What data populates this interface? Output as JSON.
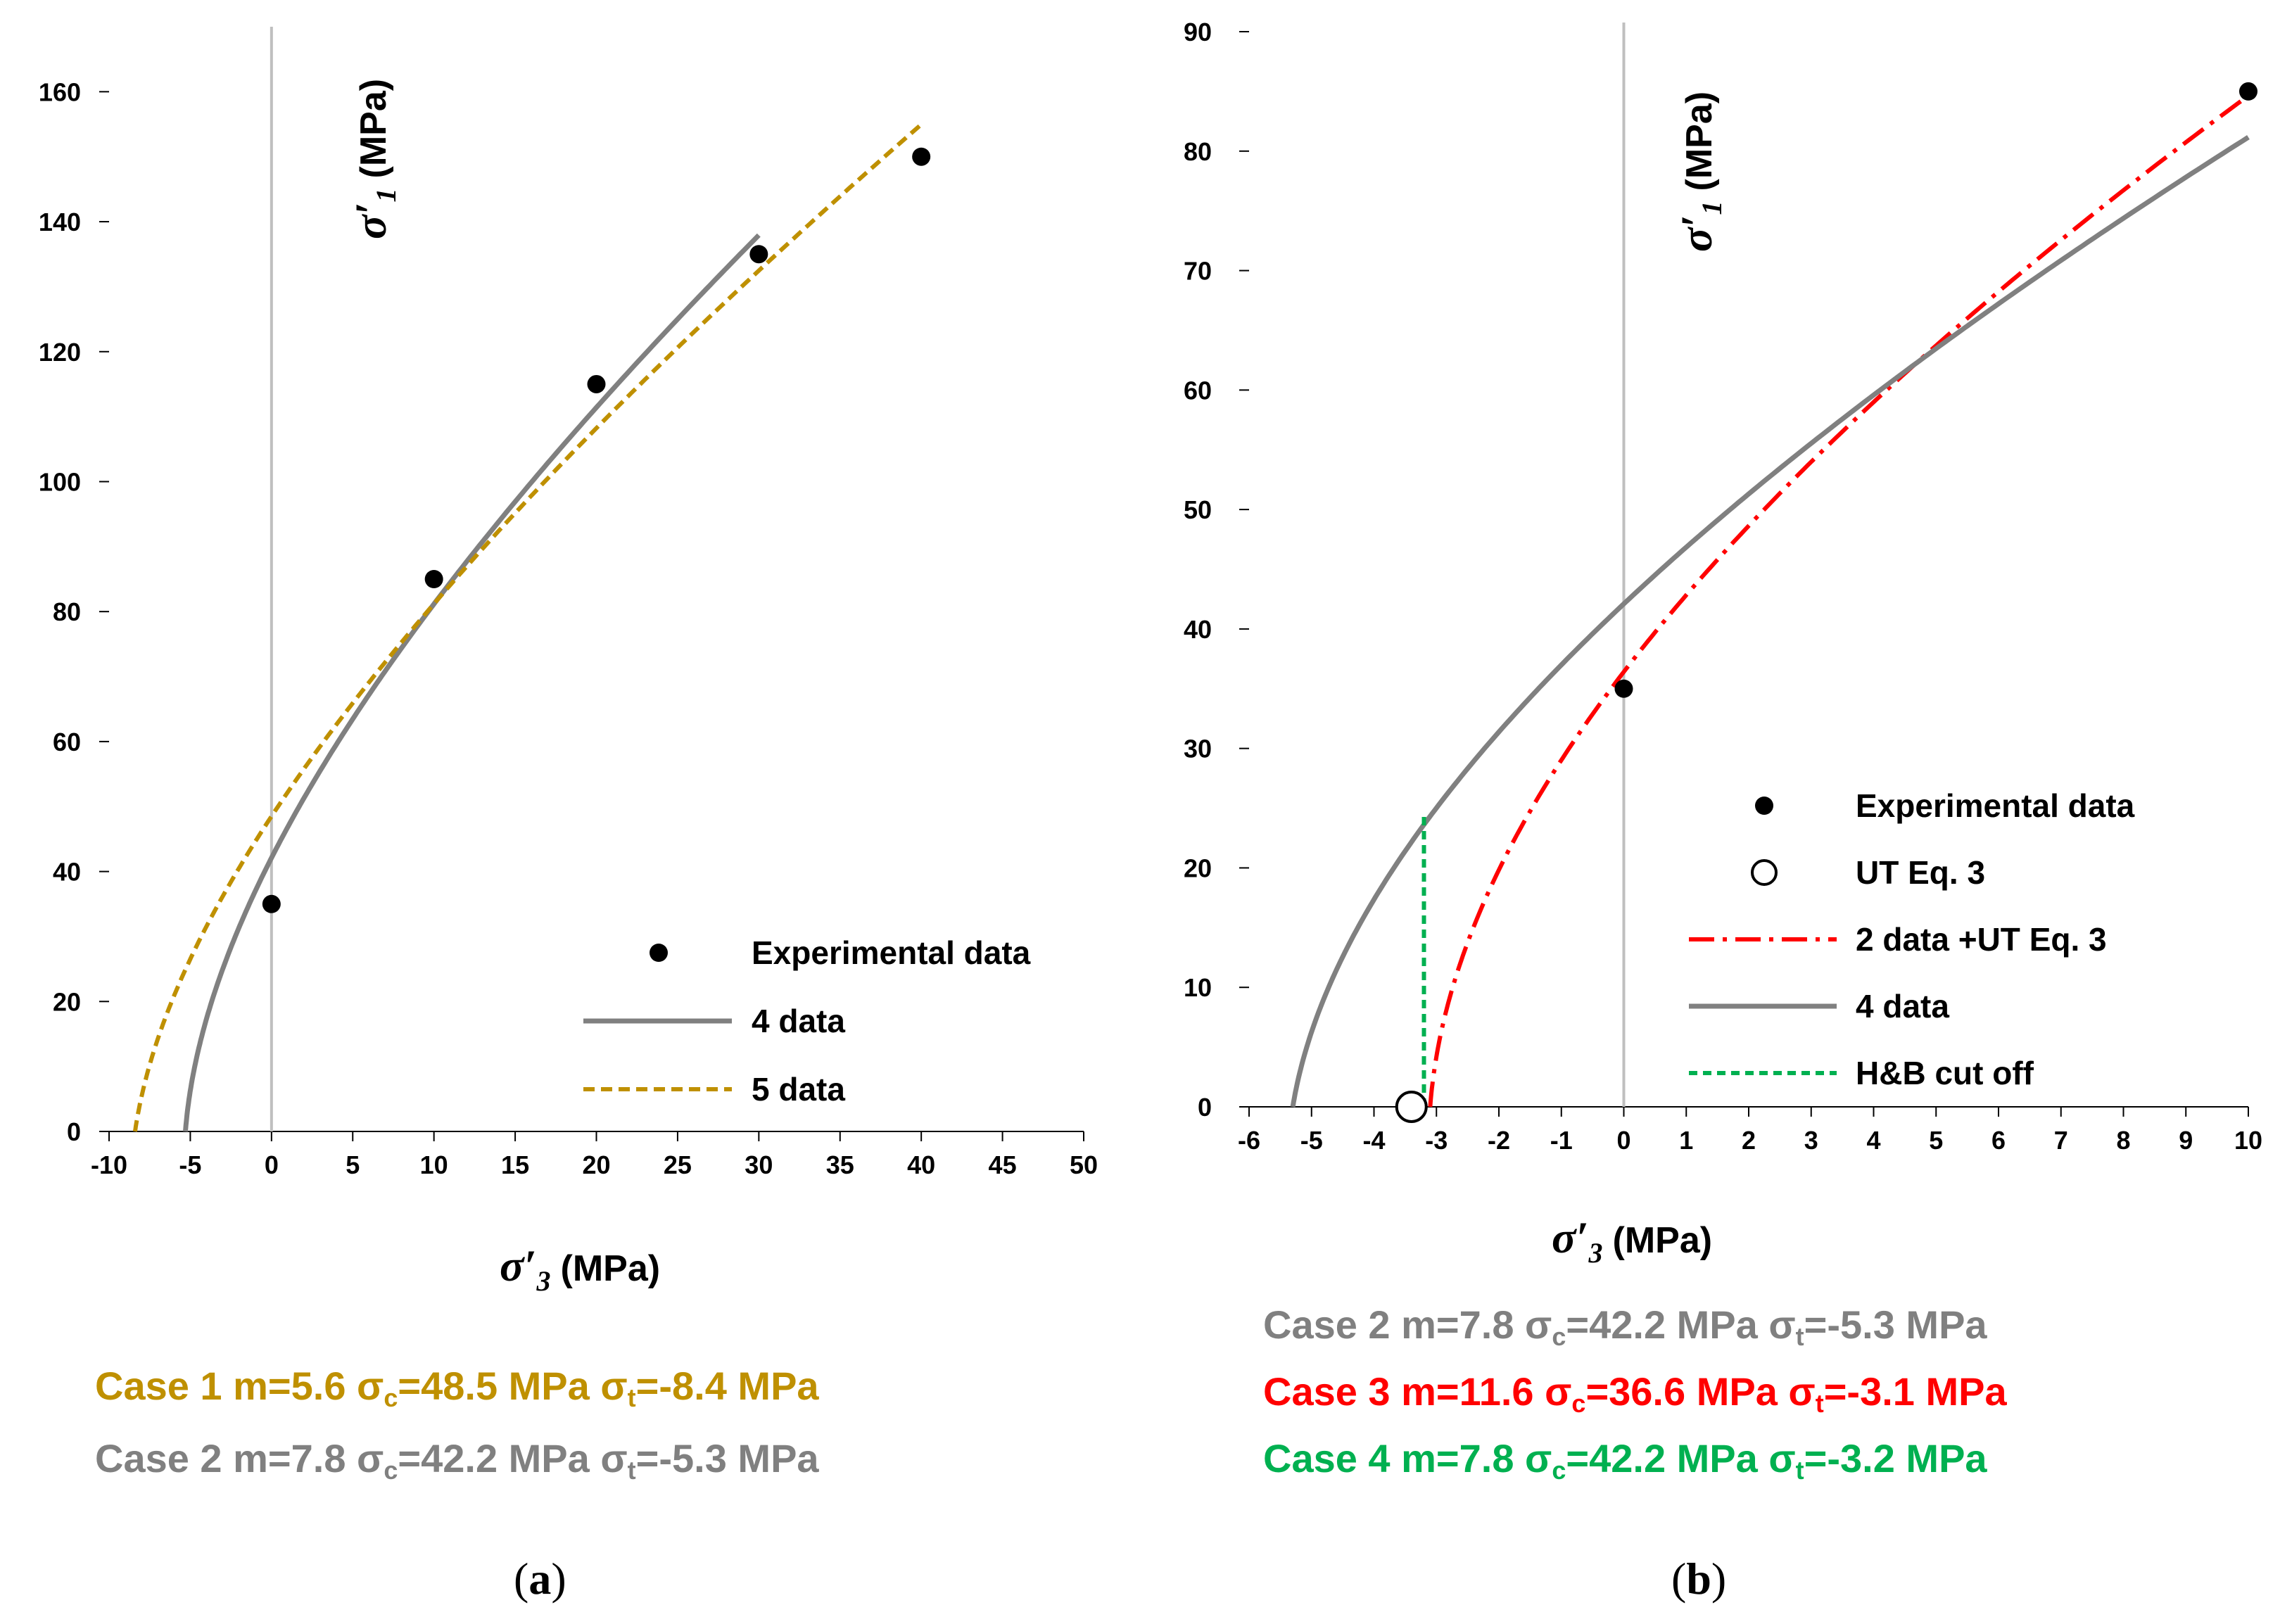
{
  "colors": {
    "case1": "#BF9000",
    "case2": "#808080",
    "case3": "#FF0000",
    "case4": "#00B050",
    "black": "#000000"
  },
  "chart_data": [
    {
      "type": "line",
      "panel": "(a)",
      "panel_letter": "a",
      "xlabel_symbol": "σ′",
      "xlabel_sub": "3",
      "xlabel_unit": "(MPa)",
      "ylabel_symbol": "σ′",
      "ylabel_sub": "1",
      "ylabel_unit": "(MPa)",
      "xlim": [
        -10,
        50
      ],
      "ylim": [
        0,
        170
      ],
      "xticks": [
        -10,
        -5,
        0,
        5,
        10,
        15,
        20,
        25,
        30,
        35,
        40,
        45,
        50
      ],
      "yticks": [
        0,
        20,
        40,
        60,
        80,
        100,
        120,
        140,
        160
      ],
      "legend_position": "bottom-right",
      "legend": [
        {
          "label": "Experimental data",
          "style": "marker-filled"
        },
        {
          "label": "4 data",
          "style": "solid-gray"
        },
        {
          "label": "5 data",
          "style": "dashed-gold"
        }
      ],
      "series": [
        {
          "name": "Experimental data",
          "kind": "points",
          "x": [
            0,
            10,
            20,
            30,
            40
          ],
          "y": [
            35,
            85,
            115,
            135,
            150
          ]
        },
        {
          "name": "4 data",
          "kind": "hoek-brown",
          "m": 7.8,
          "sigma_c": 42.2,
          "sigma_t": -5.3,
          "x_end": 30
        },
        {
          "name": "5 data",
          "kind": "hoek-brown",
          "m": 5.6,
          "sigma_c": 48.5,
          "sigma_t": -8.4,
          "x_end": 40
        }
      ],
      "cases": [
        {
          "color_key": "case1",
          "prefix": "Case 1 m=5.6 ",
          "sc": "=48.5 MPa ",
          "st": "=-8.4 MPa"
        },
        {
          "color_key": "case2",
          "prefix": "Case 2 m=7.8 ",
          "sc": "=42.2 MPa ",
          "st": "=-5.3 MPa"
        }
      ]
    },
    {
      "type": "line",
      "panel": "(b)",
      "panel_letter": "b",
      "xlabel_symbol": "σ′",
      "xlabel_sub": "3",
      "xlabel_unit": "(MPa)",
      "ylabel_symbol": "σ′",
      "ylabel_sub": "1",
      "ylabel_unit": "(MPa)",
      "xlim": [
        -6,
        10
      ],
      "ylim": [
        0,
        90
      ],
      "xticks": [
        -6,
        -5,
        -4,
        -3,
        -2,
        -1,
        0,
        1,
        2,
        3,
        4,
        5,
        6,
        7,
        8,
        9,
        10
      ],
      "yticks": [
        0,
        10,
        20,
        30,
        40,
        50,
        60,
        70,
        80,
        90
      ],
      "legend_position": "right",
      "legend": [
        {
          "label": "Experimental data",
          "style": "marker-filled"
        },
        {
          "label": "UT Eq. 3",
          "style": "marker-open"
        },
        {
          "label": "2 data +UT Eq. 3",
          "style": "dashdot-red"
        },
        {
          "label": "4 data",
          "style": "solid-gray"
        },
        {
          "label": "H&B cut off",
          "style": "dashed-green"
        }
      ],
      "series": [
        {
          "name": "Experimental data",
          "kind": "points",
          "x": [
            0,
            10
          ],
          "y": [
            35,
            85
          ]
        },
        {
          "name": "UT Eq. 3",
          "kind": "points-open",
          "x": [
            -3.4
          ],
          "y": [
            0
          ]
        },
        {
          "name": "2 data +UT Eq. 3",
          "kind": "hoek-brown",
          "m": 11.6,
          "sigma_c": 36.6,
          "sigma_t": -3.1,
          "x_end": 10
        },
        {
          "name": "4 data",
          "kind": "hoek-brown",
          "m": 7.8,
          "sigma_c": 42.2,
          "sigma_t": -5.3,
          "x_end": 10
        },
        {
          "name": "H&B cut off",
          "kind": "segment",
          "x": [
            -3.2,
            -3.2
          ],
          "y": [
            0,
            24.7
          ]
        }
      ],
      "cases": [
        {
          "color_key": "case2",
          "prefix": "Case 2 m=7.8 ",
          "sc": "=42.2 MPa ",
          "st": "=-5.3 MPa"
        },
        {
          "color_key": "case3",
          "prefix": "Case 3 m=11.6 ",
          "sc": "=36.6 MPa ",
          "st": "=-3.1 MPa"
        },
        {
          "color_key": "case4",
          "prefix": "Case 4 m=7.8 ",
          "sc": "=42.2 MPa ",
          "st": "=-3.2 MPa"
        }
      ]
    }
  ],
  "symbols": {
    "sigma": "σ",
    "sub_c": "c",
    "sub_t": "t"
  }
}
